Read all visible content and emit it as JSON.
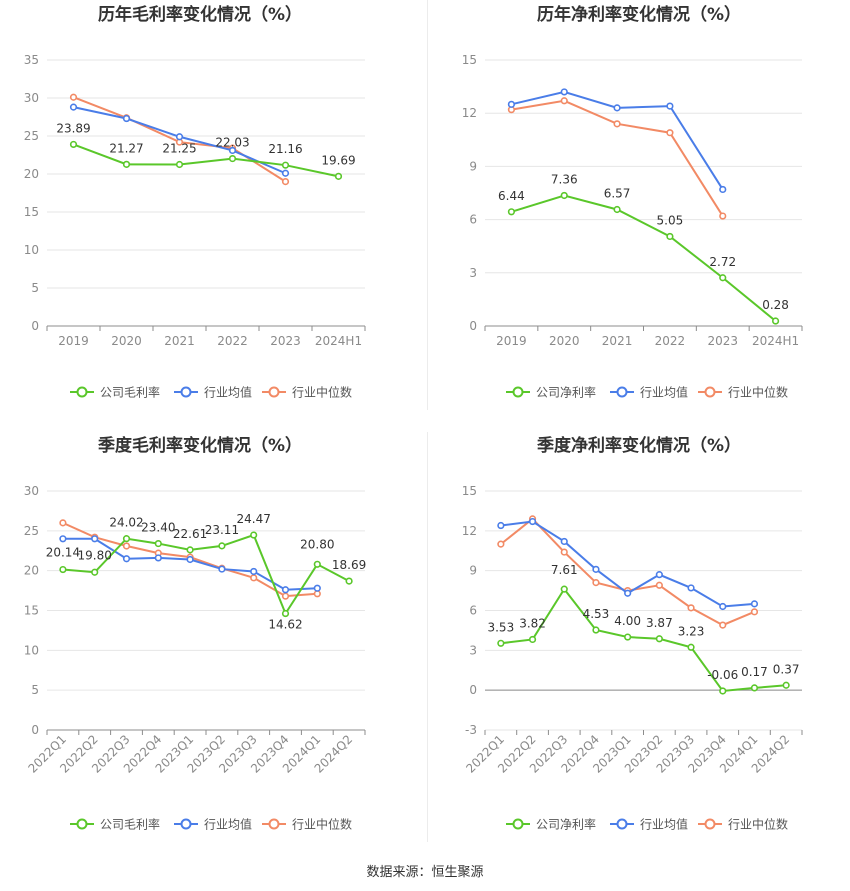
{
  "source_text": "数据来源：恒生聚源",
  "colors": {
    "company": "#5ac72a",
    "avg": "#4a7de8",
    "median": "#f28a65",
    "grid": "#e6e6e6",
    "axis_text": "#8a8a8a",
    "label_text": "#333333",
    "title_text": "#333333"
  },
  "chart_data": [
    {
      "type": "line",
      "title": "历年毛利率变化情况（%）",
      "categories": [
        "2019",
        "2020",
        "2021",
        "2022",
        "2023",
        "2024H1"
      ],
      "ylim": [
        0,
        35
      ],
      "yticks": [
        0,
        5,
        10,
        15,
        20,
        25,
        30,
        35
      ],
      "grid": true,
      "legend_position": "bottom",
      "series": [
        {
          "name": "公司毛利率",
          "color": "#5ac72a",
          "values": [
            23.89,
            21.27,
            21.25,
            22.03,
            21.16,
            19.69
          ],
          "labels": [
            "23.89",
            "21.27",
            "21.25",
            "22.03",
            "21.16",
            "19.69"
          ]
        },
        {
          "name": "行业均值",
          "color": "#4a7de8",
          "values": [
            28.8,
            27.3,
            24.9,
            23.1,
            20.1,
            null
          ]
        },
        {
          "name": "行业中位数",
          "color": "#f28a65",
          "values": [
            30.1,
            27.4,
            24.2,
            23.4,
            19.0,
            null
          ]
        }
      ]
    },
    {
      "type": "line",
      "title": "历年净利率变化情况（%）",
      "categories": [
        "2019",
        "2020",
        "2021",
        "2022",
        "2023",
        "2024H1"
      ],
      "ylim": [
        0,
        15
      ],
      "yticks": [
        0,
        3,
        6,
        9,
        12,
        15
      ],
      "grid": true,
      "legend_position": "bottom",
      "series": [
        {
          "name": "公司净利率",
          "color": "#5ac72a",
          "values": [
            6.44,
            7.36,
            6.57,
            5.05,
            2.72,
            0.28
          ],
          "labels": [
            "6.44",
            "7.36",
            "6.57",
            "5.05",
            "2.72",
            "0.28"
          ]
        },
        {
          "name": "行业均值",
          "color": "#4a7de8",
          "values": [
            12.5,
            13.2,
            12.3,
            12.4,
            7.7,
            null
          ]
        },
        {
          "name": "行业中位数",
          "color": "#f28a65",
          "values": [
            12.2,
            12.7,
            11.4,
            10.9,
            6.2,
            null
          ]
        }
      ]
    },
    {
      "type": "line",
      "title": "季度毛利率变化情况（%）",
      "categories": [
        "2022Q1",
        "2022Q2",
        "2022Q3",
        "2022Q4",
        "2023Q1",
        "2023Q2",
        "2023Q3",
        "2023Q4",
        "2024Q1",
        "2024Q2"
      ],
      "ylim": [
        0,
        30
      ],
      "yticks": [
        0,
        5,
        10,
        15,
        20,
        25,
        30
      ],
      "grid": true,
      "legend_position": "bottom",
      "series": [
        {
          "name": "公司毛利率",
          "color": "#5ac72a",
          "values": [
            20.14,
            19.8,
            24.02,
            23.4,
            22.61,
            23.11,
            24.47,
            14.62,
            20.8,
            18.69
          ],
          "labels": [
            "20.14",
            "19.80",
            "24.02",
            "23.40",
            "22.61",
            "23.11",
            "24.47",
            "14.62",
            "20.80",
            "18.69"
          ]
        },
        {
          "name": "行业均值",
          "color": "#4a7de8",
          "values": [
            24.0,
            24.0,
            21.5,
            21.6,
            21.4,
            20.2,
            19.9,
            17.6,
            17.8,
            null
          ]
        },
        {
          "name": "行业中位数",
          "color": "#f28a65",
          "values": [
            26.0,
            24.2,
            23.1,
            22.2,
            21.7,
            20.3,
            19.1,
            16.8,
            17.1,
            null
          ]
        }
      ]
    },
    {
      "type": "line",
      "title": "季度净利率变化情况（%）",
      "categories": [
        "2022Q1",
        "2022Q2",
        "2022Q3",
        "2022Q4",
        "2023Q1",
        "2023Q2",
        "2023Q3",
        "2023Q4",
        "2024Q1",
        "2024Q2"
      ],
      "ylim": [
        -3,
        15
      ],
      "yticks": [
        -3,
        0,
        3,
        6,
        9,
        12,
        15
      ],
      "grid": true,
      "legend_position": "bottom",
      "series": [
        {
          "name": "公司净利率",
          "color": "#5ac72a",
          "values": [
            3.53,
            3.82,
            7.61,
            4.53,
            4.0,
            3.87,
            3.23,
            -0.06,
            0.17,
            0.37
          ],
          "labels": [
            "3.53",
            "3.82",
            "7.61",
            "4.53",
            "4.00",
            "3.87",
            "3.23",
            "-0.06",
            "0.17",
            "0.37"
          ]
        },
        {
          "name": "行业均值",
          "color": "#4a7de8",
          "values": [
            12.4,
            12.7,
            11.2,
            9.1,
            7.3,
            8.7,
            7.7,
            6.3,
            6.5,
            null
          ]
        },
        {
          "name": "行业中位数",
          "color": "#f28a65",
          "values": [
            11.0,
            12.9,
            10.4,
            8.1,
            7.5,
            7.9,
            6.2,
            4.9,
            5.9,
            null
          ]
        }
      ]
    }
  ]
}
